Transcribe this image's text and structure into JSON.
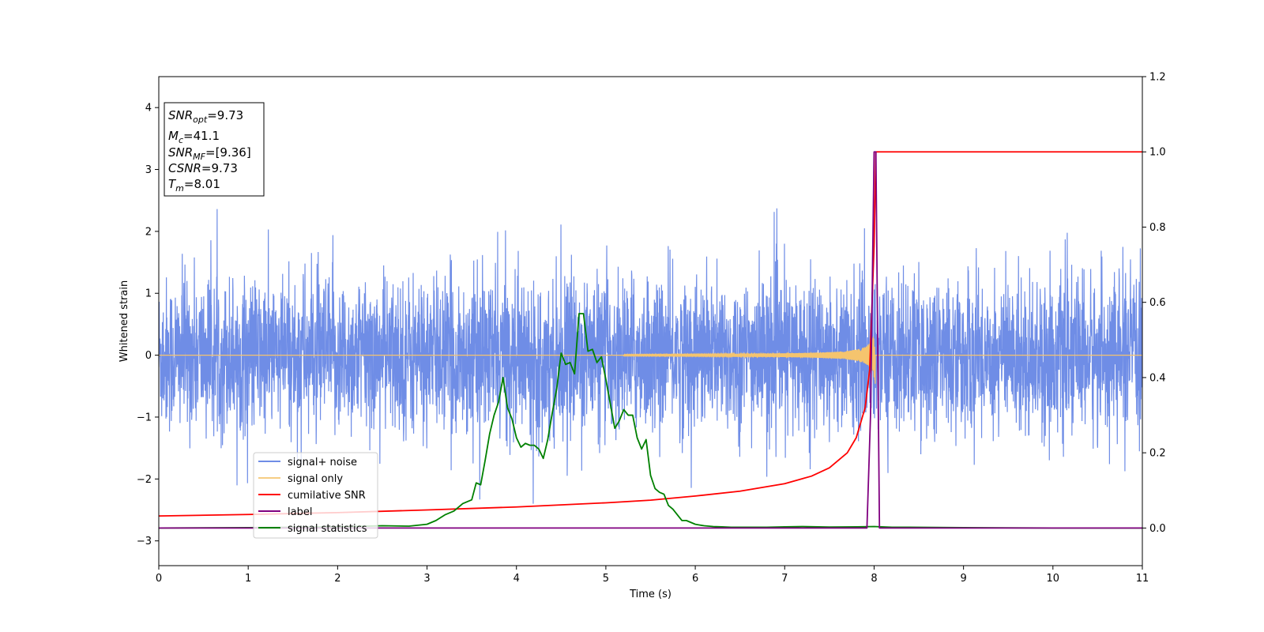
{
  "chart_data": {
    "type": "line",
    "title": "",
    "xlabel": "Time (s)",
    "ylabel": "Whitened strain",
    "ylabel_right": "",
    "xlim": [
      0,
      11
    ],
    "ylim": [
      -3.4,
      4.5
    ],
    "ylim_right": [
      -0.1,
      1.2
    ],
    "x_ticks": [
      "0",
      "1",
      "2",
      "3",
      "4",
      "5",
      "6",
      "7",
      "8",
      "9",
      "10",
      "11"
    ],
    "y_ticks": [
      "−3",
      "−2",
      "−1",
      "0",
      "1",
      "2",
      "3",
      "4"
    ],
    "y_ticks_right": [
      "0.0",
      "0.2",
      "0.4",
      "0.6",
      "0.8",
      "1.0",
      "1.2"
    ],
    "grid": false,
    "legend_position": "lower-left",
    "colors": {
      "noise": "#6f8de6",
      "signal": "#f5c46e",
      "csnr": "#ff0000",
      "label": "#800080",
      "stats": "#008000"
    },
    "series": [
      {
        "name": "signal+ noise",
        "axis": "left",
        "description_values": "noisy whitened strain, approx. zero-mean, amplitude mostly within [-1.6, 2.2], spikes up to 2.45",
        "envelope": {
          "upper_typical": 1.6,
          "lower_typical": -1.6,
          "max": 2.45,
          "min": -2.4
        }
      },
      {
        "name": "signal only",
        "axis": "left",
        "chirp": {
          "start_x": 5.2,
          "merger_x": 8.01,
          "peak_amplitude": 0.5,
          "end_x": 8.05
        }
      },
      {
        "name": "cumilative SNR",
        "axis": "right",
        "x": [
          0,
          1,
          2,
          3,
          4,
          5,
          5.5,
          6,
          6.5,
          7,
          7.3,
          7.5,
          7.7,
          7.8,
          7.9,
          7.95,
          8.0,
          8.02,
          11
        ],
        "y": [
          0.032,
          0.036,
          0.041,
          0.048,
          0.056,
          0.067,
          0.074,
          0.085,
          0.098,
          0.118,
          0.138,
          0.16,
          0.2,
          0.24,
          0.32,
          0.42,
          0.75,
          1.0,
          1.0
        ]
      },
      {
        "name": "label",
        "axis": "right",
        "x": [
          0,
          7.92,
          7.96,
          8.0,
          8.02,
          8.06,
          8.1,
          11
        ],
        "y": [
          0.0,
          0.0,
          0.3,
          1.0,
          1.0,
          0.0,
          0.0,
          0.0
        ]
      },
      {
        "name": "signal statistics",
        "axis": "right",
        "x": [
          0,
          1,
          2,
          2.5,
          2.8,
          3.0,
          3.1,
          3.2,
          3.3,
          3.4,
          3.5,
          3.55,
          3.6,
          3.65,
          3.7,
          3.75,
          3.8,
          3.85,
          3.9,
          3.95,
          4.0,
          4.05,
          4.1,
          4.15,
          4.2,
          4.25,
          4.3,
          4.35,
          4.4,
          4.45,
          4.5,
          4.55,
          4.6,
          4.65,
          4.7,
          4.75,
          4.8,
          4.85,
          4.9,
          4.95,
          5.0,
          5.05,
          5.1,
          5.15,
          5.2,
          5.25,
          5.3,
          5.35,
          5.4,
          5.45,
          5.5,
          5.55,
          5.6,
          5.65,
          5.7,
          5.75,
          5.8,
          5.85,
          5.9,
          5.95,
          6.0,
          6.05,
          6.1,
          6.2,
          6.3,
          6.4,
          6.5,
          6.6,
          6.7,
          6.8,
          7.0,
          7.2,
          7.5,
          7.8,
          8.0,
          8.2,
          8.4,
          9,
          10,
          11
        ],
        "y": [
          0.0,
          0.001,
          0.003,
          0.006,
          0.005,
          0.01,
          0.02,
          0.035,
          0.045,
          0.065,
          0.075,
          0.12,
          0.115,
          0.18,
          0.25,
          0.3,
          0.335,
          0.4,
          0.32,
          0.29,
          0.24,
          0.215,
          0.225,
          0.22,
          0.22,
          0.21,
          0.185,
          0.235,
          0.305,
          0.37,
          0.465,
          0.435,
          0.44,
          0.41,
          0.57,
          0.57,
          0.47,
          0.475,
          0.44,
          0.455,
          0.395,
          0.33,
          0.265,
          0.285,
          0.315,
          0.3,
          0.3,
          0.24,
          0.21,
          0.235,
          0.14,
          0.105,
          0.095,
          0.09,
          0.06,
          0.05,
          0.035,
          0.02,
          0.02,
          0.015,
          0.01,
          0.008,
          0.006,
          0.004,
          0.003,
          0.002,
          0.002,
          0.002,
          0.002,
          0.002,
          0.003,
          0.004,
          0.0025,
          0.003,
          0.004,
          0.002,
          0.002,
          0.001,
          0.0,
          0.0
        ]
      }
    ],
    "annotation": [
      {
        "name": "SNR",
        "sub": "opt",
        "value": "=9.73"
      },
      {
        "name": "M",
        "sub": "c",
        "value": "=41.1"
      },
      {
        "name": "SNR",
        "sub": "MF",
        "value": "=[9.36]"
      },
      {
        "name": "CSNR",
        "sub": "",
        "value": "=9.73"
      },
      {
        "name": "T",
        "sub": "m",
        "value": "=8.01"
      }
    ]
  }
}
